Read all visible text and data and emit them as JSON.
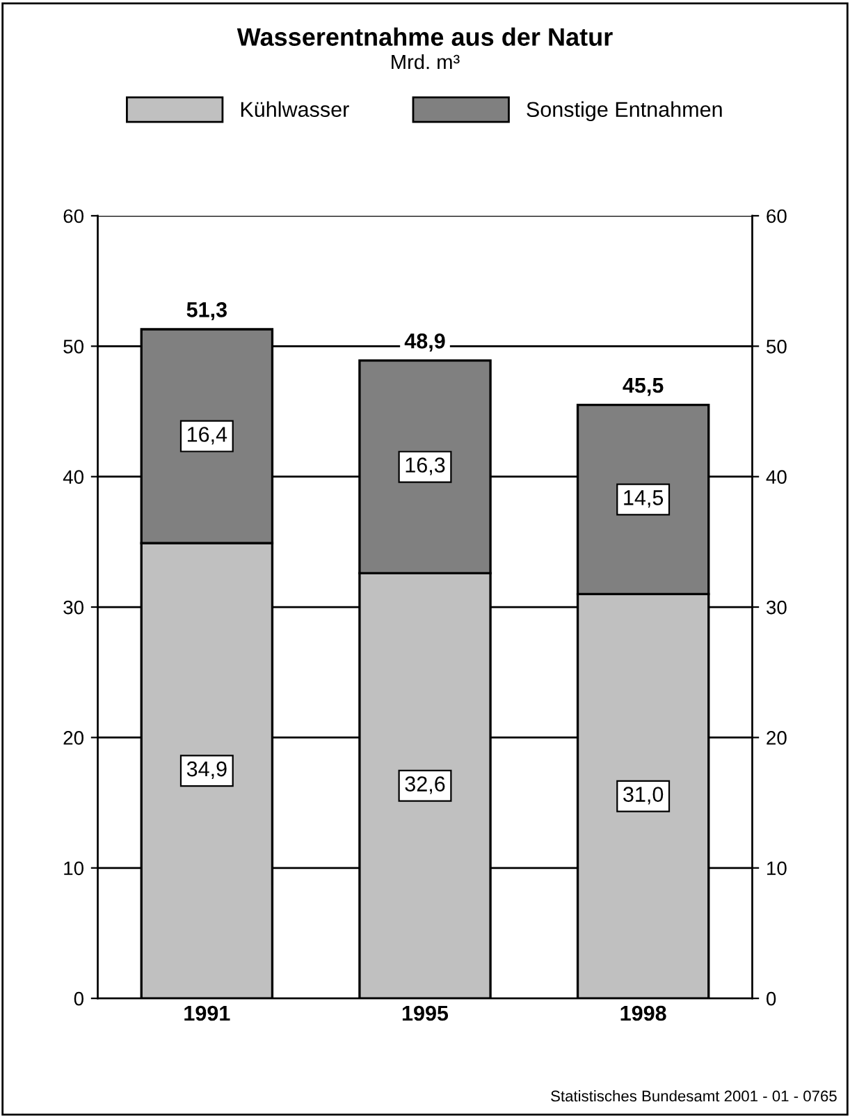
{
  "chart_data": {
    "type": "bar",
    "title": "Wasserentnahme aus der Natur",
    "subtitle": "Mrd. m³",
    "categories": [
      "1991",
      "1995",
      "1998"
    ],
    "stacked": true,
    "series": [
      {
        "name": "Kühlwasser",
        "color": "#c0c0c0",
        "values": [
          34.9,
          32.6,
          31.0
        ],
        "value_labels": [
          "34,9",
          "32,6",
          "31,0"
        ]
      },
      {
        "name": "Sonstige Entnahmen",
        "color": "#808080",
        "values": [
          16.4,
          16.3,
          14.5
        ],
        "value_labels": [
          "16,4",
          "16,3",
          "14,5"
        ]
      }
    ],
    "totals": [
      "51,3",
      "48,9",
      "45,5"
    ],
    "ylim": [
      0,
      60
    ],
    "yticks": [
      0,
      10,
      20,
      30,
      40,
      50,
      60
    ],
    "y2lim": [
      0,
      60
    ],
    "y2ticks": [
      0,
      10,
      20,
      30,
      40,
      50,
      60
    ],
    "grid": "y",
    "legend": "top",
    "annotations": [
      "Statistisches Bundesamt 2001 - 01 - 0765"
    ]
  }
}
